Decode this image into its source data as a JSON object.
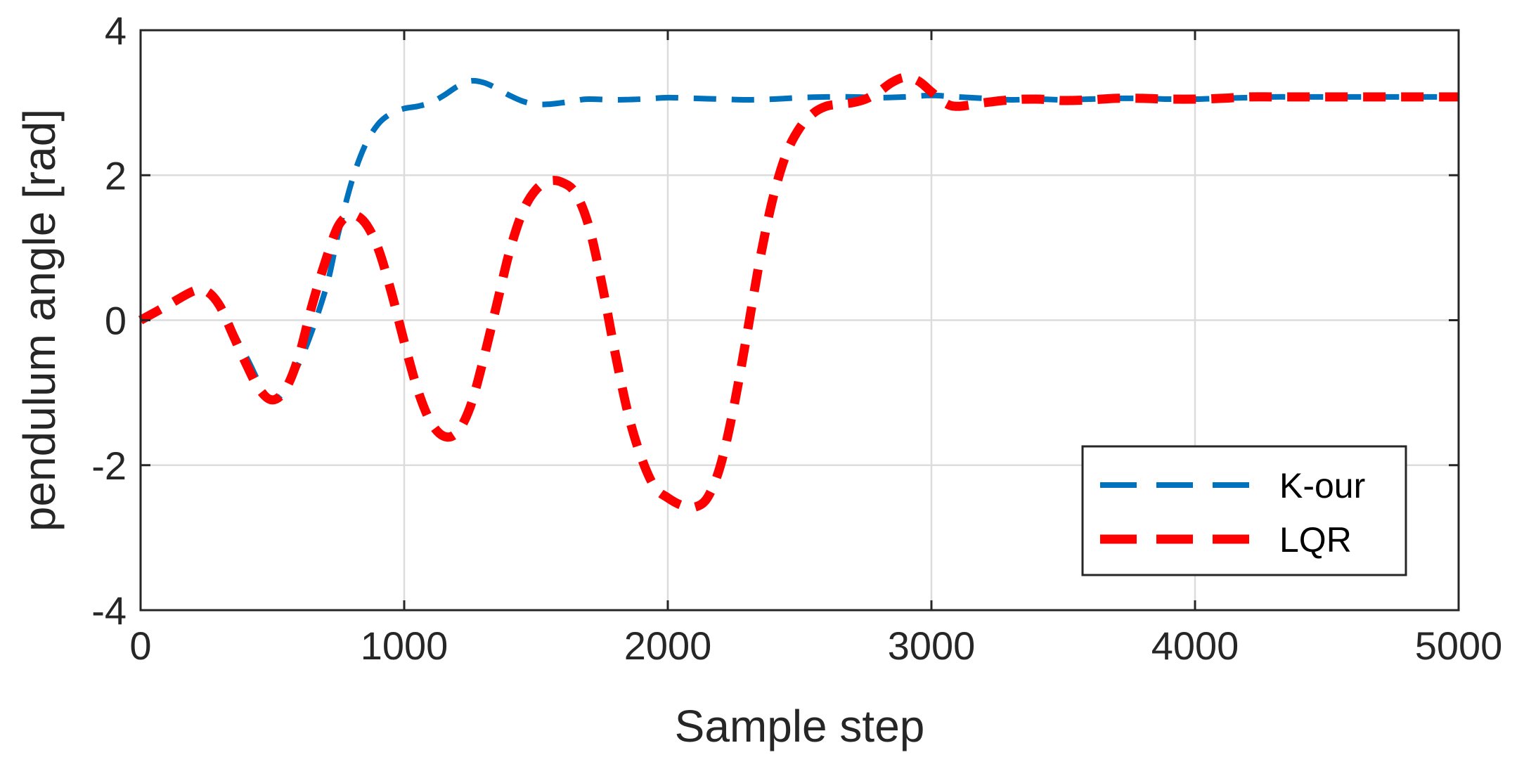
{
  "chart_data": {
    "type": "line",
    "xlabel": "Sample step",
    "ylabel": "pendulum angle [rad]",
    "xlim": [
      0,
      5000
    ],
    "ylim": [
      -4,
      4
    ],
    "xticks": [
      0,
      1000,
      2000,
      3000,
      4000,
      5000
    ],
    "yticks": [
      -4,
      -2,
      0,
      2,
      4
    ],
    "xtick_labels": [
      "0",
      "1000",
      "2000",
      "3000",
      "4000",
      "5000"
    ],
    "ytick_labels": [
      "-4",
      "-2",
      "0",
      "2",
      "4"
    ],
    "grid": true,
    "legend_position": "bottom-right",
    "series": [
      {
        "name": "K-our",
        "color": "#0072BD",
        "style": "dashed",
        "x": [
          0,
          100,
          200,
          250,
          300,
          400,
          500,
          600,
          700,
          750,
          800,
          850,
          900,
          950,
          1000,
          1050,
          1100,
          1150,
          1200,
          1250,
          1300,
          1350,
          1400,
          1450,
          1500,
          1550,
          1600,
          1650,
          1700,
          1800,
          1900,
          2000,
          2100,
          2200,
          2300,
          2400,
          2500,
          2600,
          2700,
          2800,
          2900,
          3000,
          3100,
          3200,
          3300,
          3400,
          3500,
          3600,
          3700,
          3800,
          3900,
          4000,
          4100,
          4200,
          4300,
          4400,
          4500,
          4600,
          4700,
          4800,
          4900,
          5000
        ],
        "y": [
          0,
          0.2,
          0.4,
          0.4,
          0.2,
          -0.5,
          -1.1,
          -0.6,
          0.4,
          1.2,
          1.9,
          2.4,
          2.7,
          2.85,
          2.92,
          2.95,
          3.0,
          3.1,
          3.22,
          3.3,
          3.28,
          3.2,
          3.1,
          3.02,
          2.98,
          2.98,
          3.0,
          3.03,
          3.05,
          3.04,
          3.05,
          3.07,
          3.06,
          3.05,
          3.04,
          3.05,
          3.07,
          3.08,
          3.08,
          3.07,
          3.08,
          3.1,
          3.08,
          3.06,
          3.04,
          3.05,
          3.04,
          3.05,
          3.06,
          3.06,
          3.05,
          3.05,
          3.06,
          3.07,
          3.08,
          3.08,
          3.08,
          3.08,
          3.08,
          3.08,
          3.08,
          3.08
        ]
      },
      {
        "name": "LQR",
        "color": "#FF0000",
        "style": "dashed",
        "x": [
          0,
          100,
          200,
          250,
          300,
          350,
          400,
          450,
          500,
          550,
          600,
          650,
          700,
          750,
          800,
          850,
          900,
          950,
          1000,
          1050,
          1100,
          1150,
          1200,
          1250,
          1300,
          1350,
          1400,
          1450,
          1500,
          1550,
          1600,
          1650,
          1700,
          1750,
          1800,
          1850,
          1900,
          1950,
          2000,
          2050,
          2100,
          2150,
          2200,
          2250,
          2300,
          2350,
          2400,
          2450,
          2500,
          2550,
          2600,
          2650,
          2700,
          2750,
          2800,
          2850,
          2900,
          2950,
          3000,
          3050,
          3100,
          3200,
          3300,
          3400,
          3500,
          3600,
          3700,
          3800,
          3900,
          4000,
          4100,
          4200,
          4300,
          4400,
          4500,
          4600,
          4700,
          4800,
          4900,
          5000
        ],
        "y": [
          0,
          0.2,
          0.4,
          0.4,
          0.2,
          -0.2,
          -0.6,
          -0.95,
          -1.1,
          -0.95,
          -0.5,
          0.2,
          0.8,
          1.3,
          1.45,
          1.35,
          1.0,
          0.4,
          -0.3,
          -0.95,
          -1.4,
          -1.6,
          -1.55,
          -1.2,
          -0.55,
          0.2,
          0.95,
          1.5,
          1.8,
          1.92,
          1.9,
          1.75,
          1.3,
          0.5,
          -0.45,
          -1.3,
          -1.9,
          -2.3,
          -2.45,
          -2.55,
          -2.58,
          -2.45,
          -2.0,
          -1.2,
          -0.2,
          0.85,
          1.7,
          2.3,
          2.65,
          2.85,
          2.95,
          2.98,
          3.0,
          3.05,
          3.15,
          3.28,
          3.35,
          3.3,
          3.15,
          3.0,
          2.95,
          3.0,
          3.04,
          3.05,
          3.03,
          3.04,
          3.06,
          3.06,
          3.05,
          3.05,
          3.06,
          3.08,
          3.08,
          3.08,
          3.08,
          3.08,
          3.08,
          3.08,
          3.08,
          3.08
        ]
      }
    ]
  }
}
